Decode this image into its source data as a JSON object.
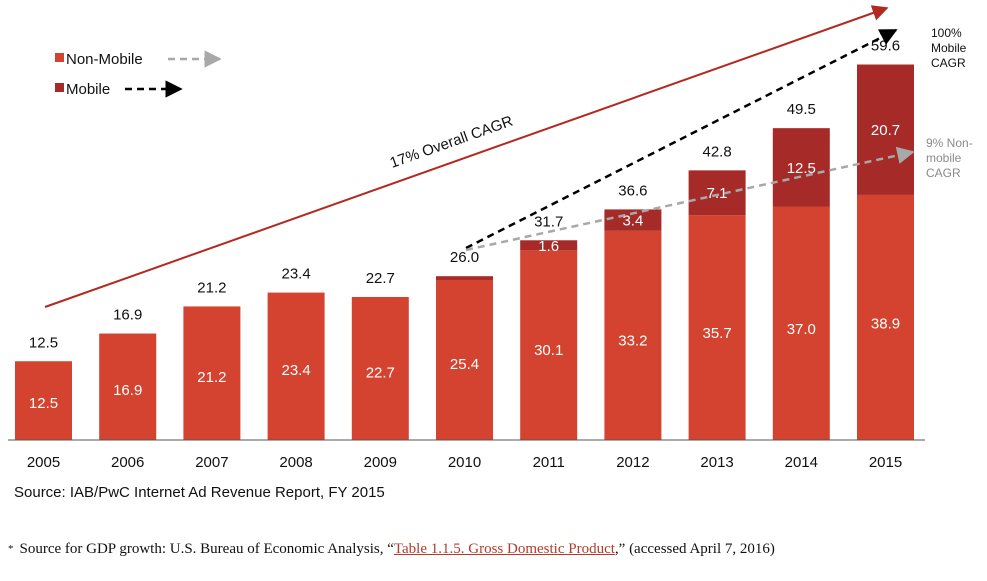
{
  "chart_data": {
    "type": "bar",
    "stacked": true,
    "categories": [
      "2005",
      "2006",
      "2007",
      "2008",
      "2009",
      "2010",
      "2011",
      "2012",
      "2013",
      "2014",
      "2015"
    ],
    "series": [
      {
        "name": "Non-Mobile",
        "values": [
          12.5,
          16.9,
          21.2,
          23.4,
          22.7,
          25.4,
          30.1,
          33.2,
          35.7,
          37.0,
          38.9
        ],
        "labels": [
          "12.5",
          "16.9",
          "21.2",
          "23.4",
          "22.7",
          "25.4",
          "30.1",
          "33.2",
          "35.7",
          "37.0",
          "38.9"
        ]
      },
      {
        "name": "Mobile",
        "values": [
          0,
          0,
          0,
          0,
          0,
          0.6,
          1.6,
          3.4,
          7.1,
          12.5,
          20.7
        ],
        "labels": [
          "",
          "",
          "",
          "",
          "",
          "",
          "1.6",
          "3.4",
          "7.1",
          "12.5",
          "20.7"
        ]
      }
    ],
    "totals": [
      12.5,
      16.9,
      21.2,
      23.4,
      22.7,
      26.0,
      31.7,
      36.6,
      42.8,
      49.5,
      59.6
    ],
    "total_labels": [
      "12.5",
      "16.9",
      "21.2",
      "23.4",
      "22.7",
      "26.0",
      "31.7",
      "36.6",
      "42.8",
      "49.5",
      "59.6"
    ],
    "ylim": [
      0,
      62
    ],
    "grid": false,
    "legend_position": "top-left",
    "annotations": {
      "overall_cagr": "17% Overall CAGR",
      "mobile_cagr": [
        "100%",
        "Mobile",
        "CAGR"
      ],
      "nonmobile_cagr": [
        "9% Non-",
        "mobile",
        "CAGR"
      ]
    }
  },
  "colors": {
    "non_mobile": "#d4432f",
    "mobile": "#a52a28",
    "overall_arrow": "#b2291f",
    "mobile_arrow": "#000000",
    "nonmobile_arrow": "#a8a8a8",
    "link": "#b23b2b"
  },
  "source": "Source: IAB/PwC Internet Ad Revenue Report, FY 2015",
  "footnote": {
    "star": "*",
    "prefix": "Source for GDP growth: U.S. Bureau of Economic Analysis, “",
    "link_text": "Table 1.1.5. Gross Domestic Product",
    "suffix": ",” (accessed April 7, 2016)"
  }
}
